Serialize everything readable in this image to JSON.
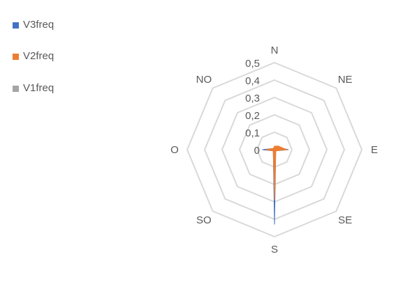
{
  "chart_data": {
    "type": "radar",
    "categories": [
      "N",
      "NE",
      "E",
      "SE",
      "S",
      "SO",
      "O",
      "NO"
    ],
    "series": [
      {
        "name": "V3freq",
        "color": "#4472C4",
        "values": [
          0.01,
          0.02,
          0.08,
          0.01,
          0.43,
          0.01,
          0.07,
          0.01
        ]
      },
      {
        "name": "V2freq",
        "color": "#ED7D31",
        "values": [
          0.02,
          0.03,
          0.07,
          0.01,
          0.29,
          0.01,
          0.05,
          0.01
        ]
      },
      {
        "name": "V1freq",
        "color": "#A5A5A5",
        "values": [
          0.0,
          0.0,
          0.0,
          0.0,
          0.0,
          0.0,
          0.0,
          0.0
        ]
      }
    ],
    "tick_values": [
      0,
      0.1,
      0.2,
      0.3,
      0.4,
      0.5
    ],
    "tick_labels": [
      "0",
      "0,1",
      "0,2",
      "0,3",
      "0,4",
      "0,5"
    ],
    "range": [
      0,
      0.5
    ],
    "grid": true,
    "grid_color": "#D9D9D9",
    "legend_position": "top-left",
    "title": ""
  }
}
